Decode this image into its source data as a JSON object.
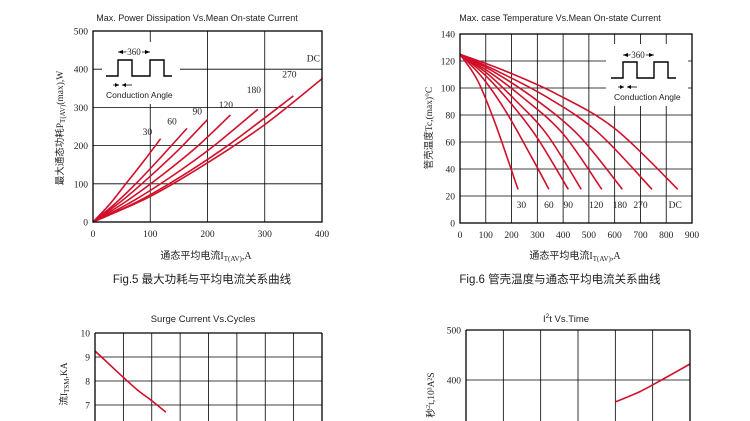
{
  "chart_data": [
    {
      "id": "fig5",
      "type": "line",
      "title": "Max. Power Dissipation Vs.Mean On-state Current",
      "caption": "Fig.5 最大功耗与平均电流关系曲线",
      "ylabel": {
        "main": "最大通态功耗P",
        "sub": "T(AV)",
        "tail": "(max),W"
      },
      "xlabel": {
        "main": "通态平均电流I",
        "sub": "T(AV)",
        "tail": ",A"
      },
      "xlim": [
        0,
        400
      ],
      "ylim": [
        0,
        500
      ],
      "xticks": [
        0,
        100,
        200,
        300,
        400
      ],
      "yticks": [
        0,
        100,
        200,
        300,
        400,
        500
      ],
      "grid": true,
      "inset": {
        "label_top": "360",
        "label_bottom": "Conduction Angle"
      },
      "series": [
        {
          "name": "30",
          "x": [
            0,
            30,
            60,
            90,
            118
          ],
          "y": [
            0,
            48,
            105,
            162,
            218
          ]
        },
        {
          "name": "60",
          "x": [
            0,
            40,
            80,
            120,
            164
          ],
          "y": [
            0,
            50,
            108,
            172,
            245
          ]
        },
        {
          "name": "90",
          "x": [
            0,
            50,
            100,
            150,
            200
          ],
          "y": [
            0,
            55,
            120,
            190,
            268
          ]
        },
        {
          "name": "120",
          "x": [
            0,
            60,
            120,
            180,
            240
          ],
          "y": [
            0,
            56,
            122,
            195,
            280
          ]
        },
        {
          "name": "180",
          "x": [
            0,
            70,
            140,
            210,
            288
          ],
          "y": [
            0,
            55,
            122,
            198,
            295
          ]
        },
        {
          "name": "270",
          "x": [
            0,
            80,
            160,
            240,
            350
          ],
          "y": [
            0,
            55,
            125,
            205,
            330
          ]
        },
        {
          "name": "DC",
          "x": [
            0,
            100,
            200,
            300,
            400
          ],
          "y": [
            0,
            67,
            155,
            255,
            375
          ]
        }
      ],
      "series_labels": [
        {
          "text": "30",
          "x": 95,
          "y": 228
        },
        {
          "text": "60",
          "x": 138,
          "y": 255
        },
        {
          "text": "90",
          "x": 182,
          "y": 281
        },
        {
          "text": "120",
          "x": 232,
          "y": 299
        },
        {
          "text": "180",
          "x": 281,
          "y": 338
        },
        {
          "text": "270",
          "x": 343,
          "y": 378
        },
        {
          "text": "DC",
          "x": 385,
          "y": 420
        }
      ]
    },
    {
      "id": "fig6",
      "type": "line",
      "title": "Max. case Temperature Vs.Mean On-state Current",
      "caption": "Fig.6 管壳温度与通态平均电流关系曲线",
      "ylabel": {
        "main": "管壳温度Tc,(max)°C",
        "sub": "",
        "tail": ""
      },
      "xlabel": {
        "main": "通态平均电流I",
        "sub": "T(AV)",
        "tail": ",A"
      },
      "xlim": [
        0,
        900
      ],
      "ylim": [
        0,
        140
      ],
      "xticks": [
        0,
        100,
        200,
        300,
        400,
        500,
        600,
        700,
        800,
        900
      ],
      "yticks": [
        0,
        20,
        40,
        60,
        80,
        100,
        120,
        140
      ],
      "grid": true,
      "inset": {
        "label_top": "360",
        "label_bottom": "Conduction Angle"
      },
      "series": [
        {
          "name": "30",
          "x": [
            0,
            70,
            140,
            225
          ],
          "y": [
            125,
            105,
            72,
            25
          ]
        },
        {
          "name": "60",
          "x": [
            0,
            90,
            180,
            280,
            345
          ],
          "y": [
            125,
            107,
            82,
            48,
            25
          ]
        },
        {
          "name": "90",
          "x": [
            0,
            100,
            200,
            300,
            420
          ],
          "y": [
            125,
            109,
            88,
            63,
            25
          ]
        },
        {
          "name": "120",
          "x": [
            0,
            110,
            220,
            340,
            470
          ],
          "y": [
            125,
            110,
            90,
            65,
            25
          ]
        },
        {
          "name": "180",
          "x": [
            0,
            120,
            250,
            400,
            550
          ],
          "y": [
            125,
            111,
            92,
            66,
            25
          ]
        },
        {
          "name": "270",
          "x": [
            0,
            140,
            290,
            460,
            630
          ],
          "y": [
            125,
            111,
            92,
            65,
            25
          ]
        },
        {
          "name": "DC",
          "x": [
            0,
            150,
            330,
            530,
            745
          ],
          "y": [
            125,
            112,
            94,
            68,
            25
          ]
        },
        {
          "name": "",
          "x": [
            0,
            170,
            370,
            600,
            845
          ],
          "y": [
            125,
            113,
            96,
            70,
            25
          ]
        }
      ],
      "bottom_labels": [
        "30",
        "60",
        "90",
        "120",
        "180",
        "270",
        "DC"
      ],
      "bottom_label_x": [
        238,
        345,
        420,
        528,
        620,
        700,
        835
      ]
    },
    {
      "id": "fig7",
      "type": "line",
      "title": "Surge Current Vs.Cycles",
      "ylabel": {
        "main": "流I",
        "sub": "TSM",
        "tail": ",KA"
      },
      "ylim_visible": [
        6.5,
        10
      ],
      "yticks": [
        7,
        8,
        9,
        10
      ],
      "grid": true,
      "series": [
        {
          "name": "",
          "x": [
            0,
            0.5,
            1,
            1.5,
            2,
            2.5
          ],
          "y": [
            9.25,
            8.7,
            8.15,
            7.62,
            7.18,
            6.7
          ]
        }
      ]
    },
    {
      "id": "fig8",
      "type": "line",
      "title": "I²t Vs.Time",
      "title_main": "I",
      "title_sup": "2",
      "title_tail": "t  Vs.Time",
      "ylabel": {
        "main": "秒",
        "sup": "2",
        "tail": "t,10³A²S"
      },
      "ylim_visible": [
        350,
        500
      ],
      "yticks": [
        400,
        500
      ],
      "grid": true,
      "series": [
        {
          "name": "",
          "x": [
            0.25,
            0.5,
            0.75,
            1
          ],
          "y": [
            356,
            377,
            404,
            432
          ]
        }
      ]
    }
  ]
}
